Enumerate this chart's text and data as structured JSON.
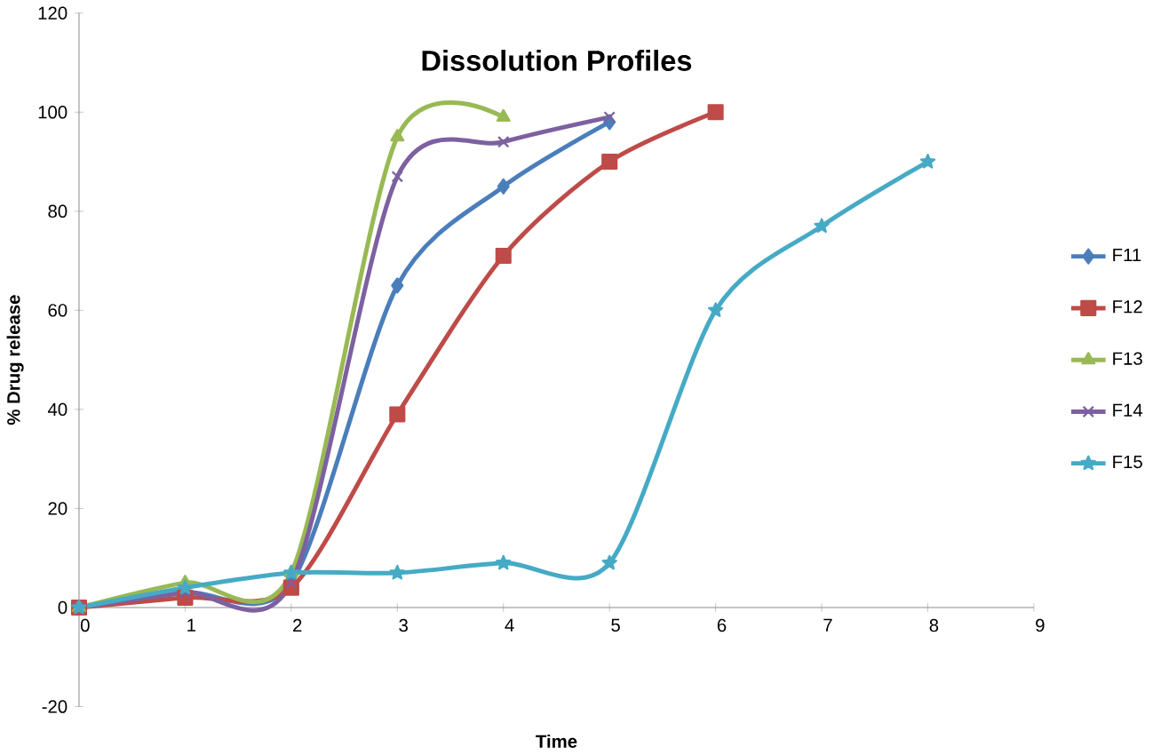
{
  "chart_data": {
    "type": "line",
    "title": "Dissolution Profiles",
    "xlabel": "Time",
    "ylabel": "% Drug release",
    "x": [
      0,
      1,
      2,
      3,
      4,
      5,
      6,
      7,
      8
    ],
    "xlim": [
      0,
      9
    ],
    "xticks": [
      0,
      1,
      2,
      3,
      4,
      5,
      6,
      7,
      8,
      9
    ],
    "ylim": [
      -20,
      120
    ],
    "yticks": [
      -20,
      0,
      20,
      40,
      60,
      80,
      100,
      120
    ],
    "grid": false,
    "legend": "right",
    "series": [
      {
        "name": "F11",
        "color": "#4a7ebb",
        "marker": "diamond",
        "values": [
          0,
          3,
          5,
          65,
          85,
          98,
          null,
          null,
          null
        ]
      },
      {
        "name": "F12",
        "color": "#be4b48",
        "marker": "square",
        "values": [
          0,
          2,
          4,
          39,
          71,
          90,
          100,
          null,
          null
        ]
      },
      {
        "name": "F13",
        "color": "#98b954",
        "marker": "triangle",
        "values": [
          0,
          5,
          7,
          95,
          99,
          null,
          null,
          null,
          null
        ]
      },
      {
        "name": "F14",
        "color": "#7d60a0",
        "marker": "cross",
        "values": [
          0,
          3,
          5,
          87,
          94,
          99,
          null,
          null,
          null
        ]
      },
      {
        "name": "F15",
        "color": "#46aac5",
        "marker": "star",
        "values": [
          0,
          4,
          7,
          7,
          9,
          9,
          60,
          77,
          90
        ]
      }
    ]
  }
}
